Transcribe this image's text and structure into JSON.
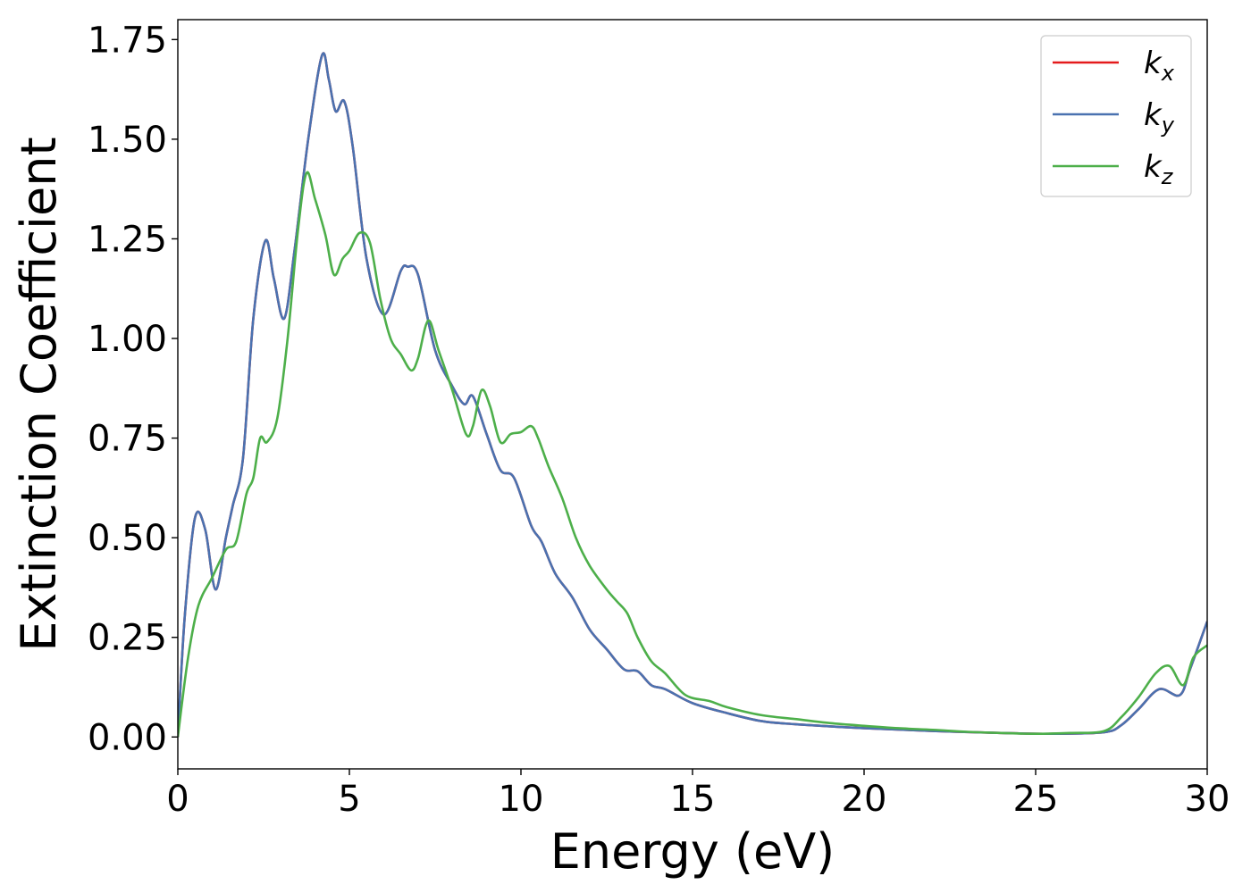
{
  "chart_data": {
    "type": "line",
    "title": "",
    "xlabel": "Energy (eV)",
    "ylabel": "Extinction Coefficient",
    "xlim": [
      0,
      30
    ],
    "ylim": [
      -0.08,
      1.8
    ],
    "xticks": [
      0,
      5,
      10,
      15,
      20,
      25,
      30
    ],
    "xtick_labels": [
      "0",
      "5",
      "10",
      "15",
      "20",
      "25",
      "30"
    ],
    "yticks": [
      0,
      0.25,
      0.5,
      0.75,
      1.0,
      1.25,
      1.5,
      1.75
    ],
    "ytick_labels": [
      "0.00",
      "0.25",
      "0.50",
      "0.75",
      "1.00",
      "1.25",
      "1.50",
      "1.75"
    ],
    "grid": false,
    "legend_position": "top-right",
    "series": [
      {
        "name": "k_x",
        "legend_base": "k",
        "legend_sub": "x",
        "color": "#e41a1c",
        "points": [
          [
            0,
            0
          ],
          [
            0.2,
            0.3
          ],
          [
            0.5,
            0.55
          ],
          [
            0.8,
            0.52
          ],
          [
            1.1,
            0.37
          ],
          [
            1.4,
            0.5
          ],
          [
            1.6,
            0.58
          ],
          [
            1.9,
            0.7
          ],
          [
            2.2,
            1.05
          ],
          [
            2.55,
            1.245
          ],
          [
            2.8,
            1.15
          ],
          [
            3.1,
            1.05
          ],
          [
            3.4,
            1.22
          ],
          [
            3.8,
            1.5
          ],
          [
            4.2,
            1.71
          ],
          [
            4.4,
            1.65
          ],
          [
            4.6,
            1.57
          ],
          [
            4.85,
            1.595
          ],
          [
            5.1,
            1.48
          ],
          [
            5.5,
            1.2
          ],
          [
            6.0,
            1.06
          ],
          [
            6.5,
            1.17
          ],
          [
            6.7,
            1.18
          ],
          [
            7.0,
            1.16
          ],
          [
            7.5,
            0.97
          ],
          [
            8.0,
            0.88
          ],
          [
            8.35,
            0.835
          ],
          [
            8.6,
            0.855
          ],
          [
            9.0,
            0.76
          ],
          [
            9.4,
            0.67
          ],
          [
            9.8,
            0.65
          ],
          [
            10.3,
            0.53
          ],
          [
            10.6,
            0.49
          ],
          [
            11.0,
            0.41
          ],
          [
            11.5,
            0.35
          ],
          [
            12.0,
            0.27
          ],
          [
            12.5,
            0.22
          ],
          [
            13.0,
            0.17
          ],
          [
            13.4,
            0.165
          ],
          [
            13.8,
            0.13
          ],
          [
            14.2,
            0.12
          ],
          [
            15.0,
            0.085
          ],
          [
            16.0,
            0.06
          ],
          [
            17.0,
            0.04
          ],
          [
            18.0,
            0.032
          ],
          [
            20.0,
            0.022
          ],
          [
            22.0,
            0.015
          ],
          [
            24.0,
            0.01
          ],
          [
            25.5,
            0.008
          ],
          [
            27.0,
            0.012
          ],
          [
            27.5,
            0.03
          ],
          [
            28.0,
            0.07
          ],
          [
            28.6,
            0.12
          ],
          [
            29.2,
            0.105
          ],
          [
            29.5,
            0.17
          ],
          [
            30.0,
            0.29
          ]
        ]
      },
      {
        "name": "k_y",
        "legend_base": "k",
        "legend_sub": "y",
        "color": "#4a72b0",
        "points": [
          [
            0,
            0
          ],
          [
            0.2,
            0.3
          ],
          [
            0.5,
            0.55
          ],
          [
            0.8,
            0.52
          ],
          [
            1.1,
            0.37
          ],
          [
            1.4,
            0.5
          ],
          [
            1.6,
            0.58
          ],
          [
            1.9,
            0.7
          ],
          [
            2.2,
            1.05
          ],
          [
            2.55,
            1.245
          ],
          [
            2.8,
            1.15
          ],
          [
            3.1,
            1.05
          ],
          [
            3.4,
            1.22
          ],
          [
            3.8,
            1.5
          ],
          [
            4.2,
            1.71
          ],
          [
            4.4,
            1.65
          ],
          [
            4.6,
            1.57
          ],
          [
            4.85,
            1.595
          ],
          [
            5.1,
            1.48
          ],
          [
            5.5,
            1.2
          ],
          [
            6.0,
            1.06
          ],
          [
            6.5,
            1.17
          ],
          [
            6.7,
            1.18
          ],
          [
            7.0,
            1.16
          ],
          [
            7.5,
            0.97
          ],
          [
            8.0,
            0.88
          ],
          [
            8.35,
            0.835
          ],
          [
            8.6,
            0.855
          ],
          [
            9.0,
            0.76
          ],
          [
            9.4,
            0.67
          ],
          [
            9.8,
            0.65
          ],
          [
            10.3,
            0.53
          ],
          [
            10.6,
            0.49
          ],
          [
            11.0,
            0.41
          ],
          [
            11.5,
            0.35
          ],
          [
            12.0,
            0.27
          ],
          [
            12.5,
            0.22
          ],
          [
            13.0,
            0.17
          ],
          [
            13.4,
            0.165
          ],
          [
            13.8,
            0.13
          ],
          [
            14.2,
            0.12
          ],
          [
            15.0,
            0.085
          ],
          [
            16.0,
            0.06
          ],
          [
            17.0,
            0.04
          ],
          [
            18.0,
            0.032
          ],
          [
            20.0,
            0.022
          ],
          [
            22.0,
            0.015
          ],
          [
            24.0,
            0.01
          ],
          [
            25.5,
            0.008
          ],
          [
            27.0,
            0.012
          ],
          [
            27.5,
            0.03
          ],
          [
            28.0,
            0.07
          ],
          [
            28.6,
            0.12
          ],
          [
            29.2,
            0.105
          ],
          [
            29.5,
            0.17
          ],
          [
            30.0,
            0.29
          ]
        ]
      },
      {
        "name": "k_z",
        "legend_base": "k",
        "legend_sub": "z",
        "color": "#4daf4a",
        "points": [
          [
            0,
            0
          ],
          [
            0.3,
            0.2
          ],
          [
            0.6,
            0.33
          ],
          [
            1.0,
            0.4
          ],
          [
            1.4,
            0.47
          ],
          [
            1.7,
            0.49
          ],
          [
            2.0,
            0.61
          ],
          [
            2.2,
            0.65
          ],
          [
            2.4,
            0.75
          ],
          [
            2.6,
            0.74
          ],
          [
            2.9,
            0.8
          ],
          [
            3.2,
            1.0
          ],
          [
            3.5,
            1.27
          ],
          [
            3.75,
            1.415
          ],
          [
            4.0,
            1.35
          ],
          [
            4.3,
            1.26
          ],
          [
            4.55,
            1.16
          ],
          [
            4.8,
            1.2
          ],
          [
            5.0,
            1.22
          ],
          [
            5.3,
            1.265
          ],
          [
            5.6,
            1.24
          ],
          [
            5.9,
            1.1
          ],
          [
            6.2,
            1.0
          ],
          [
            6.5,
            0.96
          ],
          [
            6.8,
            0.92
          ],
          [
            7.0,
            0.95
          ],
          [
            7.3,
            1.045
          ],
          [
            7.6,
            0.97
          ],
          [
            8.0,
            0.87
          ],
          [
            8.4,
            0.76
          ],
          [
            8.6,
            0.78
          ],
          [
            8.85,
            0.87
          ],
          [
            9.1,
            0.83
          ],
          [
            9.4,
            0.74
          ],
          [
            9.7,
            0.76
          ],
          [
            10.0,
            0.765
          ],
          [
            10.3,
            0.78
          ],
          [
            10.5,
            0.75
          ],
          [
            10.8,
            0.68
          ],
          [
            11.2,
            0.6
          ],
          [
            11.6,
            0.5
          ],
          [
            12.0,
            0.43
          ],
          [
            12.5,
            0.37
          ],
          [
            12.8,
            0.34
          ],
          [
            13.1,
            0.31
          ],
          [
            13.4,
            0.25
          ],
          [
            13.8,
            0.19
          ],
          [
            14.2,
            0.16
          ],
          [
            14.8,
            0.105
          ],
          [
            15.5,
            0.09
          ],
          [
            16.0,
            0.075
          ],
          [
            17.0,
            0.055
          ],
          [
            18.0,
            0.045
          ],
          [
            19.0,
            0.035
          ],
          [
            20.0,
            0.028
          ],
          [
            21.0,
            0.022
          ],
          [
            22.0,
            0.018
          ],
          [
            23.0,
            0.013
          ],
          [
            24.0,
            0.01
          ],
          [
            25.0,
            0.008
          ],
          [
            26.0,
            0.01
          ],
          [
            27.0,
            0.015
          ],
          [
            27.5,
            0.05
          ],
          [
            28.0,
            0.1
          ],
          [
            28.5,
            0.16
          ],
          [
            28.9,
            0.178
          ],
          [
            29.3,
            0.13
          ],
          [
            29.6,
            0.2
          ],
          [
            30.0,
            0.23
          ]
        ]
      }
    ]
  }
}
